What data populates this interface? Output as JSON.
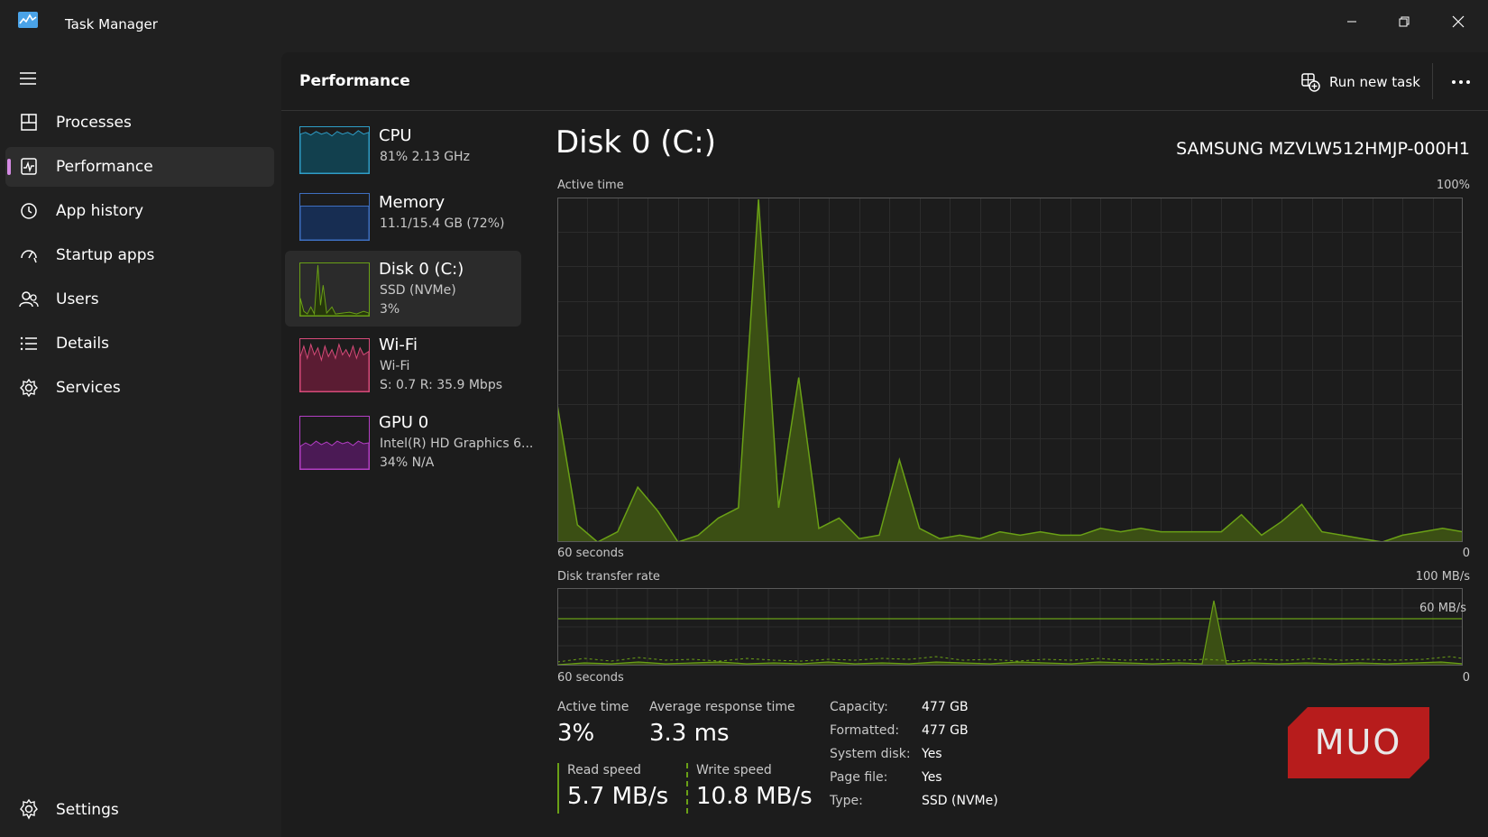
{
  "window": {
    "title": "Task Manager"
  },
  "nav": {
    "items": [
      {
        "label": "Processes",
        "icon": "processes-icon"
      },
      {
        "label": "Performance",
        "icon": "performance-icon",
        "active": true
      },
      {
        "label": "App history",
        "icon": "app-history-icon"
      },
      {
        "label": "Startup apps",
        "icon": "startup-apps-icon"
      },
      {
        "label": "Users",
        "icon": "users-icon"
      },
      {
        "label": "Details",
        "icon": "details-icon"
      },
      {
        "label": "Services",
        "icon": "services-icon"
      }
    ],
    "settings_label": "Settings"
  },
  "header": {
    "title": "Performance",
    "run_new_task": "Run new task"
  },
  "devices": [
    {
      "name": "CPU",
      "line1": "81%  2.13 GHz",
      "line2": "",
      "color": "#2f9dc6",
      "fill": "#12404e"
    },
    {
      "name": "Memory",
      "line1": "11.1/15.4 GB (72%)",
      "line2": "",
      "color": "#3e6fc0",
      "fill": "#172d52"
    },
    {
      "name": "Disk 0 (C:)",
      "line1": "SSD (NVMe)",
      "line2": "3%",
      "color": "#6aa016",
      "fill": "#26360c",
      "active": true
    },
    {
      "name": "Wi-Fi",
      "line1": "Wi-Fi",
      "line2": "S: 0.7  R: 35.9 Mbps",
      "color": "#d64b79",
      "fill": "#5b1c33"
    },
    {
      "name": "GPU 0",
      "line1": "Intel(R) HD Graphics 6...",
      "line2": "34%  N/A",
      "color": "#b33fc4",
      "fill": "#4b1a55"
    }
  ],
  "disk": {
    "title": "Disk 0 (C:)",
    "model": "SAMSUNG MZVLW512HMJP-000H1",
    "active_time_chart": {
      "label": "Active time",
      "max_label": "100%",
      "time_label": "60 seconds",
      "min_label": "0",
      "values": [
        40,
        5,
        0,
        3,
        16,
        9,
        0,
        2,
        7,
        10,
        100,
        10,
        48,
        4,
        7,
        1,
        2,
        24,
        4,
        1,
        2,
        1,
        3,
        2,
        3,
        2,
        2,
        4,
        3,
        4,
        3,
        3,
        3,
        3,
        8,
        2,
        6,
        11,
        3,
        2,
        1,
        0,
        2,
        3,
        4,
        3
      ]
    },
    "transfer_chart": {
      "label": "Disk transfer rate",
      "max_label": "100 MB/s",
      "marker_label": "60 MB/s",
      "time_label": "60 seconds",
      "min_label": "0"
    },
    "stats": {
      "active_time_label": "Active time",
      "active_time_value": "3%",
      "avg_response_label": "Average response time",
      "avg_response_value": "3.3 ms",
      "read_label": "Read speed",
      "read_value": "5.7 MB/s",
      "write_label": "Write speed",
      "write_value": "10.8 MB/s"
    },
    "properties": [
      {
        "key": "Capacity:",
        "value": "477 GB"
      },
      {
        "key": "Formatted:",
        "value": "477 GB"
      },
      {
        "key": "System disk:",
        "value": "Yes"
      },
      {
        "key": "Page file:",
        "value": "Yes"
      },
      {
        "key": "Type:",
        "value": "SSD (NVMe)"
      }
    ]
  },
  "watermark": {
    "text": "MUO"
  },
  "colors": {
    "accent": "#d48ae3",
    "disk": "#6aa016",
    "disk_fill": "#3b4f14",
    "grid": "#2c2c2c"
  }
}
